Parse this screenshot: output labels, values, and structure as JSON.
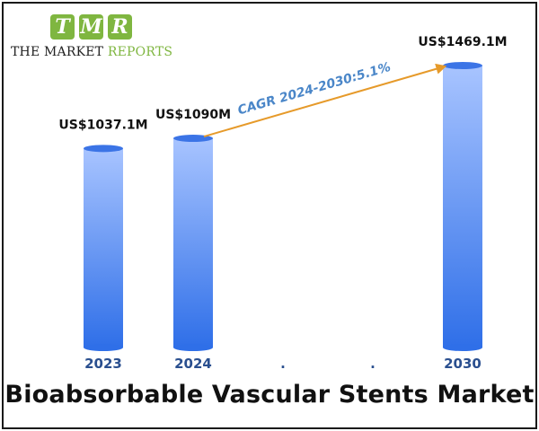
{
  "logo": {
    "letters": [
      "T",
      "M",
      "R"
    ],
    "name_part1": "THE MARKET",
    "name_part2": "REPORTS",
    "tile_color": "#7fb640"
  },
  "title": "Bioabsorbable Vascular Stents Market",
  "chart_data": {
    "type": "bar",
    "categories": [
      "2023",
      "2024",
      ".",
      ".",
      "2030"
    ],
    "values": [
      1037.1,
      1090,
      null,
      null,
      1469.1
    ],
    "data_labels": [
      "US$1037.1M",
      "US$1090M",
      "",
      "",
      "US$1469.1M"
    ],
    "title": "Bioabsorbable Vascular Stents Market",
    "xlabel": "",
    "ylabel": "",
    "ylim": [
      0,
      1469.1
    ],
    "grid": false,
    "annotation": {
      "text": "CAGR 2024-2030:5.1%",
      "from_category": "2024",
      "to_category": "2030"
    },
    "colors": {
      "bar_top": "#a8c4ff",
      "bar_bottom": "#2f6fe8",
      "bar_cap": "#3b74e6",
      "arrow": "#e69a2a",
      "annotation_text": "#4a86c8",
      "category_label": "#2a4f8f",
      "value_label": "#111111"
    }
  }
}
